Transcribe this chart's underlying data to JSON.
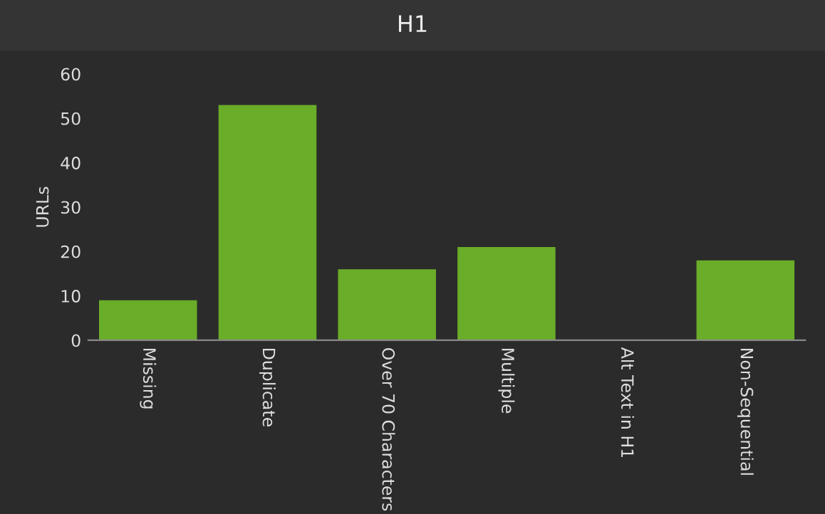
{
  "chart_data": {
    "type": "bar",
    "title": "H1",
    "ylabel": "URLs",
    "categories": [
      "Missing",
      "Duplicate",
      "Over 70 Characters",
      "Multiple",
      "Alt Text in H1",
      "Non-Sequential"
    ],
    "values": [
      9,
      53,
      16,
      21,
      0,
      18
    ],
    "color": "#6aad28",
    "ylim": [
      0,
      60
    ],
    "yticks": [
      0,
      10,
      20,
      30,
      40,
      50,
      60
    ],
    "grid": false,
    "legend": false
  }
}
